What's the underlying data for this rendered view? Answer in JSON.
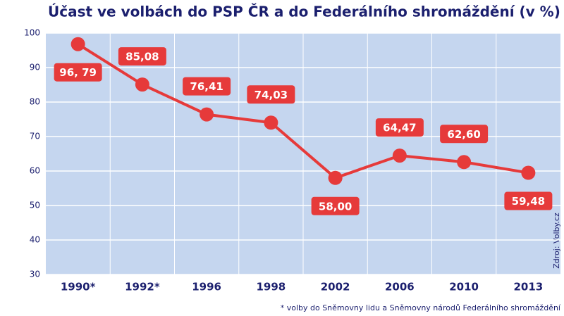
{
  "chart_data": {
    "type": "line",
    "title": "Účast ve volbách do PSP ČR a do Federálního shromáždění (v %)",
    "categories": [
      "1990*",
      "1992*",
      "1996",
      "1998",
      "2002",
      "2006",
      "2010",
      "2013"
    ],
    "series": [
      {
        "name": "Účast",
        "color": "#e63a3a",
        "values": [
          96.79,
          85.08,
          76.41,
          74.03,
          58.0,
          64.47,
          62.6,
          59.48
        ],
        "value_labels": [
          "96, 79",
          "85,08",
          "76,41",
          "74,03",
          "58,00",
          "64,47",
          "62,60",
          "59,48"
        ]
      }
    ],
    "ylim": [
      30,
      100
    ],
    "yticks": [
      30,
      40,
      50,
      60,
      70,
      80,
      90,
      100
    ],
    "grid": true,
    "source": "Zdroj: Volby.cz",
    "footnote": "* volby do Sněmovny lidu a Sněmovny národů Federálního shromáždění"
  }
}
